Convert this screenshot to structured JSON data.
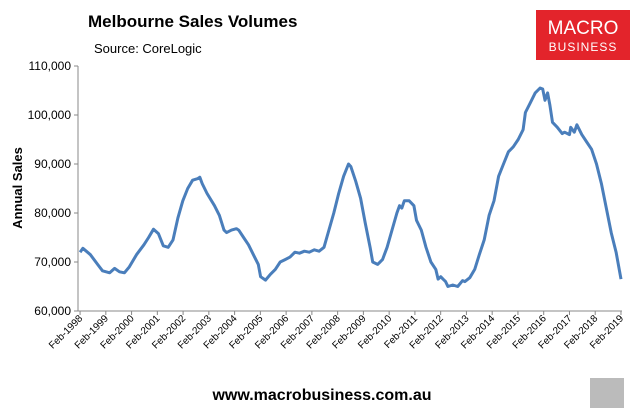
{
  "chart_data": {
    "type": "line",
    "title": "Melbourne Sales Volumes",
    "subtitle": "Source: CoreLogic",
    "y_label": "Annual Sales",
    "logo": [
      "MACRO",
      "BUSINESS"
    ],
    "footer": "www.macrobusiness.com.au",
    "grid": false,
    "xlim": [
      1998.0,
      2019.12
    ],
    "ylim": [
      60000,
      110000
    ],
    "yticks": [
      {
        "value": 60000,
        "label": "60,000"
      },
      {
        "value": 70000,
        "label": "70,000"
      },
      {
        "value": 80000,
        "label": "80,000"
      },
      {
        "value": 90000,
        "label": "90,000"
      },
      {
        "value": 100000,
        "label": "100,000"
      },
      {
        "value": 110000,
        "label": "110,000"
      }
    ],
    "xticks": [
      {
        "value": 1998.08,
        "label": "Feb-1998"
      },
      {
        "value": 1999.08,
        "label": "Feb-1999"
      },
      {
        "value": 2000.08,
        "label": "Feb-2000"
      },
      {
        "value": 2001.08,
        "label": "Feb-2001"
      },
      {
        "value": 2002.08,
        "label": "Feb-2002"
      },
      {
        "value": 2003.08,
        "label": "Feb-2003"
      },
      {
        "value": 2004.08,
        "label": "Feb-2004"
      },
      {
        "value": 2005.08,
        "label": "Feb-2005"
      },
      {
        "value": 2006.08,
        "label": "Feb-2006"
      },
      {
        "value": 2007.08,
        "label": "Feb-2007"
      },
      {
        "value": 2008.08,
        "label": "Feb-2008"
      },
      {
        "value": 2009.08,
        "label": "Feb-2009"
      },
      {
        "value": 2010.08,
        "label": "Feb-2010"
      },
      {
        "value": 2011.08,
        "label": "Feb-2011"
      },
      {
        "value": 2012.08,
        "label": "Feb-2012"
      },
      {
        "value": 2013.08,
        "label": "Feb-2013"
      },
      {
        "value": 2014.08,
        "label": "Feb-2014"
      },
      {
        "value": 2015.08,
        "label": "Feb-2015"
      },
      {
        "value": 2016.08,
        "label": "Feb-2016"
      },
      {
        "value": 2017.08,
        "label": "Feb-2017"
      },
      {
        "value": 2018.08,
        "label": "Feb-2018"
      },
      {
        "value": 2019.08,
        "label": "Feb-2019"
      }
    ],
    "x": [
      1998.08,
      1998.19,
      1998.48,
      1998.76,
      1998.95,
      1999.23,
      1999.42,
      1999.61,
      1999.8,
      1999.99,
      2000.27,
      2000.56,
      2000.74,
      2000.93,
      2001.12,
      2001.31,
      2001.5,
      2001.69,
      2001.88,
      2002.07,
      2002.26,
      2002.45,
      2002.64,
      2002.73,
      2002.82,
      2003.01,
      2003.3,
      2003.49,
      2003.67,
      2003.77,
      2003.96,
      2004.15,
      2004.24,
      2004.43,
      2004.62,
      2004.81,
      2005.0,
      2005.09,
      2005.28,
      2005.47,
      2005.66,
      2005.85,
      2006.04,
      2006.23,
      2006.42,
      2006.6,
      2006.79,
      2006.98,
      2007.17,
      2007.36,
      2007.55,
      2007.74,
      2007.93,
      2008.12,
      2008.31,
      2008.5,
      2008.59,
      2008.78,
      2008.97,
      2009.15,
      2009.34,
      2009.44,
      2009.63,
      2009.82,
      2010.0,
      2010.19,
      2010.38,
      2010.48,
      2010.57,
      2010.67,
      2010.86,
      2011.04,
      2011.14,
      2011.33,
      2011.51,
      2011.7,
      2011.89,
      2011.98,
      2012.08,
      2012.17,
      2012.27,
      2012.36,
      2012.55,
      2012.74,
      2012.93,
      2013.02,
      2013.21,
      2013.4,
      2013.58,
      2013.77,
      2013.96,
      2014.15,
      2014.33,
      2014.52,
      2014.71,
      2014.9,
      2015.09,
      2015.28,
      2015.37,
      2015.56,
      2015.75,
      2015.94,
      2016.04,
      2016.13,
      2016.23,
      2016.32,
      2016.42,
      2016.61,
      2016.8,
      2016.89,
      2017.08,
      2017.13,
      2017.27,
      2017.37,
      2017.56,
      2017.75,
      2017.94,
      2018.13,
      2018.32,
      2018.51,
      2018.7,
      2018.89,
      2019.08
    ],
    "series": [
      {
        "name": "Annual Sales",
        "color": "#4a7ebb",
        "values": [
          72000,
          72800,
          71500,
          69500,
          68200,
          67800,
          68700,
          68000,
          67800,
          69000,
          71500,
          73500,
          75000,
          76700,
          75800,
          73300,
          73000,
          74500,
          79000,
          82500,
          85000,
          86700,
          87000,
          87300,
          86000,
          84000,
          81500,
          79500,
          76500,
          76000,
          76500,
          76800,
          76500,
          75000,
          73500,
          71500,
          69500,
          67000,
          66300,
          67500,
          68500,
          70000,
          70500,
          71000,
          72000,
          71800,
          72200,
          72000,
          72500,
          72200,
          73000,
          76500,
          80000,
          84000,
          87500,
          90000,
          89500,
          86500,
          83000,
          78000,
          73000,
          70000,
          69500,
          70500,
          73000,
          76500,
          80000,
          81500,
          81000,
          82500,
          82500,
          81500,
          78500,
          76500,
          73000,
          70000,
          68500,
          66500,
          67000,
          66500,
          66000,
          65000,
          65300,
          65000,
          66200,
          66000,
          66800,
          68500,
          71500,
          74500,
          79500,
          82500,
          87500,
          90000,
          92500,
          93500,
          95000,
          97000,
          100500,
          102500,
          104500,
          105500,
          105300,
          103000,
          104500,
          102000,
          98500,
          97500,
          96200,
          96500,
          96000,
          97500,
          96500,
          98000,
          96000,
          94500,
          93000,
          90000,
          86000,
          81000,
          76000,
          72000,
          66500
        ]
      }
    ]
  }
}
